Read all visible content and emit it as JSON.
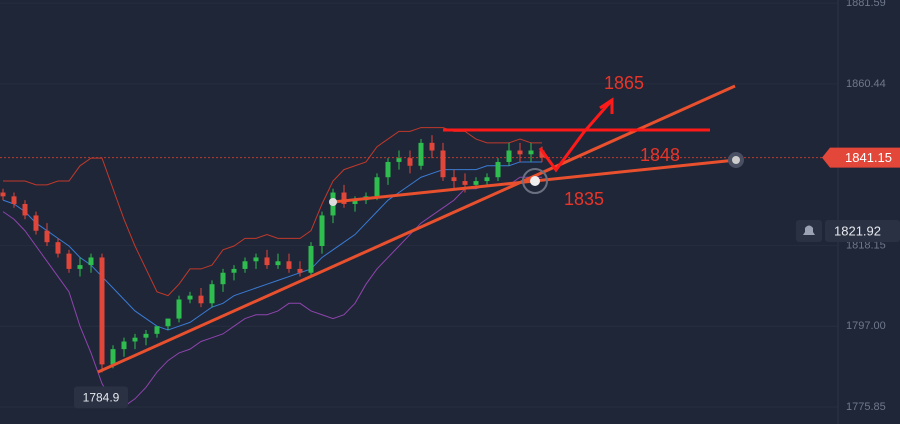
{
  "chart_data": {
    "type": "candlestick",
    "ylim": [
      1771.4,
      1882.4
    ],
    "yticks": [
      1881.59,
      1860.44,
      1818.15,
      {
        "value": 1797,
        "label": "1797.00"
      },
      1775.85
    ],
    "open": [
      1832,
      1831,
      1829,
      1826,
      1822,
      1819,
      1816,
      1812,
      1813,
      1815,
      1787,
      1791,
      1793,
      1794,
      1795,
      1797,
      1799,
      1804,
      1805,
      1803,
      1808,
      1811,
      1812,
      1814,
      1815,
      1813,
      1814,
      1812,
      1811,
      1818,
      1826,
      1832,
      1829,
      1830,
      1831,
      1836,
      1840,
      1841,
      1839,
      1845,
      1843,
      1836,
      1835,
      1834,
      1835,
      1836,
      1840,
      1843,
      1842,
      1843
    ],
    "high": [
      1833,
      1832,
      1830,
      1827,
      1824,
      1820,
      1817,
      1815,
      1816,
      1816,
      1792,
      1794,
      1795,
      1796,
      1797,
      1799,
      1805,
      1806,
      1807,
      1809,
      1812,
      1813,
      1815,
      1816,
      1817,
      1816,
      1816,
      1814,
      1819,
      1827,
      1833,
      1834,
      1831,
      1832,
      1837,
      1841,
      1843,
      1843,
      1846,
      1847,
      1845,
      1838,
      1837,
      1836,
      1837,
      1841,
      1845,
      1845,
      1845,
      1844
    ],
    "low": [
      1830,
      1828,
      1825,
      1821,
      1818,
      1815,
      1811,
      1810,
      1811,
      1784.9,
      1786,
      1789,
      1791,
      1792,
      1794,
      1796,
      1798,
      1803,
      1802,
      1802,
      1806,
      1809,
      1811,
      1812,
      1812,
      1812,
      1811,
      1810,
      1810,
      1816,
      1824,
      1828,
      1827,
      1829,
      1830,
      1834,
      1838,
      1837,
      1838,
      1841,
      1835,
      1833,
      1832,
      1833,
      1834,
      1835,
      1839,
      1840,
      1840,
      1840
    ],
    "close": [
      1831,
      1829,
      1826,
      1822,
      1819,
      1816,
      1812,
      1813,
      1815,
      1787,
      1791,
      1793,
      1794,
      1795,
      1797,
      1799,
      1804,
      1805,
      1803,
      1808,
      1811,
      1812,
      1814,
      1815,
      1813,
      1814,
      1812,
      1811,
      1818,
      1826,
      1832,
      1829,
      1830,
      1831,
      1836,
      1840,
      1841,
      1839,
      1845,
      1843,
      1836,
      1835,
      1834,
      1835,
      1836,
      1840,
      1843,
      1842,
      1843,
      1841.15
    ],
    "series": [
      {
        "color": "#c0392b",
        "values": [
          1835,
          1835,
          1835,
          1834,
          1834,
          1835,
          1835,
          1839,
          1841,
          1841,
          1833,
          1825,
          1818,
          1812,
          1806,
          1805,
          1808,
          1812,
          1812,
          1813,
          1817,
          1818,
          1820,
          1820,
          1821,
          1820,
          1820,
          1820,
          1822,
          1829,
          1835,
          1838,
          1839,
          1840,
          1844,
          1846,
          1848,
          1848,
          1849,
          1849,
          1849,
          1848,
          1848,
          1846,
          1845,
          1845,
          1845,
          1846,
          1845,
          1845
        ]
      },
      {
        "color": "#3a7bd5",
        "values": [
          1830,
          1829,
          1827,
          1824,
          1822,
          1820,
          1818,
          1815,
          1813,
          1810,
          1807,
          1804,
          1801,
          1799,
          1797,
          1796,
          1797,
          1798,
          1800,
          1802,
          1803,
          1805,
          1806,
          1807,
          1808,
          1809,
          1810,
          1811,
          1812,
          1815,
          1817,
          1819,
          1821,
          1824,
          1827,
          1830,
          1832,
          1834,
          1836,
          1837,
          1838,
          1838,
          1838,
          1838,
          1839,
          1839,
          1839,
          1840,
          1840,
          1840
        ]
      },
      {
        "color": "#8e44ad",
        "values": [
          1827,
          1825,
          1822,
          1818,
          1814,
          1810,
          1806,
          1797,
          1790,
          1782,
          1777,
          1776,
          1778,
          1781,
          1785,
          1788,
          1790,
          1791,
          1793,
          1794,
          1795,
          1797,
          1799,
          1800,
          1800,
          1801,
          1803,
          1803,
          1801,
          1800,
          1799,
          1800,
          1803,
          1808,
          1812,
          1815,
          1818,
          1821,
          1824,
          1826,
          1828,
          1830,
          1833,
          1833,
          1834,
          1834,
          1834,
          1836,
          1836,
          1836
        ]
      }
    ],
    "up_color": "#2ebd4e",
    "down_color": "#e0463a",
    "last_price": 1841.15,
    "alert_price": 1821.92,
    "low_label": 1784.9,
    "annotations": [
      "1865",
      "1848",
      "1835"
    ]
  }
}
